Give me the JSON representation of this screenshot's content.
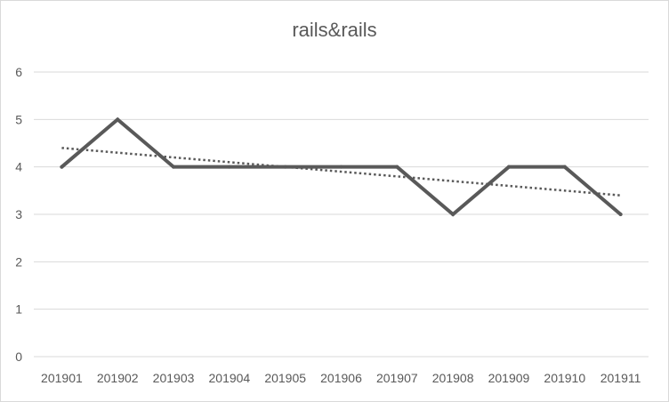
{
  "chart_data": {
    "type": "line",
    "title": "rails&rails",
    "xlabel": "",
    "ylabel": "",
    "categories": [
      "201901",
      "201902",
      "201903",
      "201904",
      "201905",
      "201906",
      "201907",
      "201908",
      "201909",
      "201910",
      "201911"
    ],
    "series": [
      {
        "values": [
          4,
          5,
          4,
          4,
          4,
          4,
          4,
          3,
          4,
          4,
          3
        ],
        "color": "#595959",
        "style": "solid"
      }
    ],
    "trendline": {
      "type": "linear",
      "style": "dotted",
      "color": "#595959",
      "start": 4.4,
      "end": 3.4
    },
    "ylim": [
      0,
      6
    ],
    "yticks": [
      "0",
      "1",
      "2",
      "3",
      "4",
      "5",
      "6"
    ],
    "grid": "horizontal",
    "legend": "none",
    "gridColor": "#d9d9d9"
  }
}
